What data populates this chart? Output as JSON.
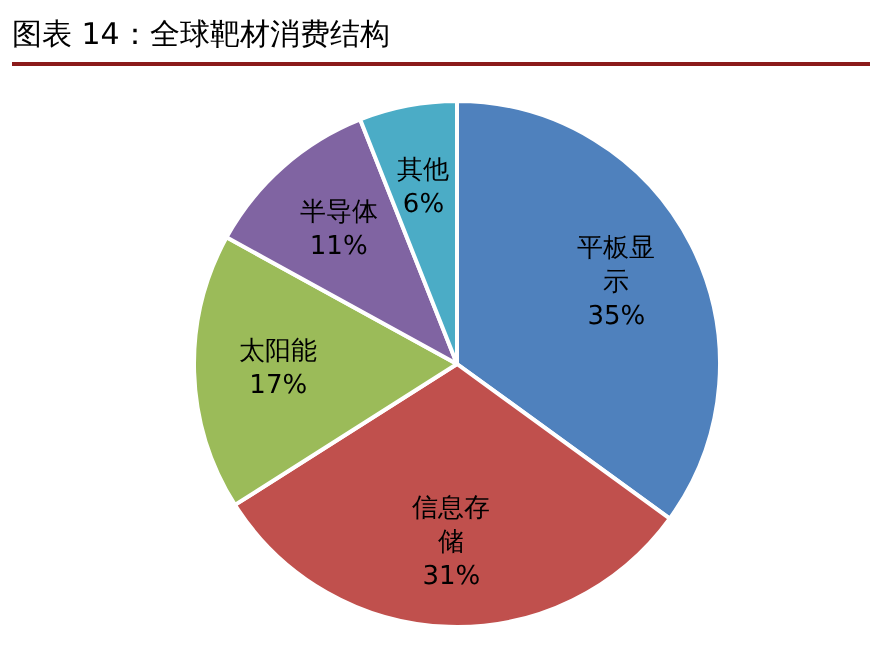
{
  "chart_data": {
    "type": "pie",
    "title": "图表 14：全球靶材消费结构",
    "categories": [
      "平板显示",
      "信息存储",
      "太阳能",
      "半导体",
      "其他"
    ],
    "values": [
      35,
      31,
      17,
      11,
      6
    ],
    "colors": [
      "#4f81bd",
      "#c0504d",
      "#9bbb59",
      "#8064a2",
      "#4bacc6"
    ],
    "value_labels": [
      "35%",
      "31%",
      "17%",
      "11%",
      "6%"
    ],
    "legend": false
  }
}
